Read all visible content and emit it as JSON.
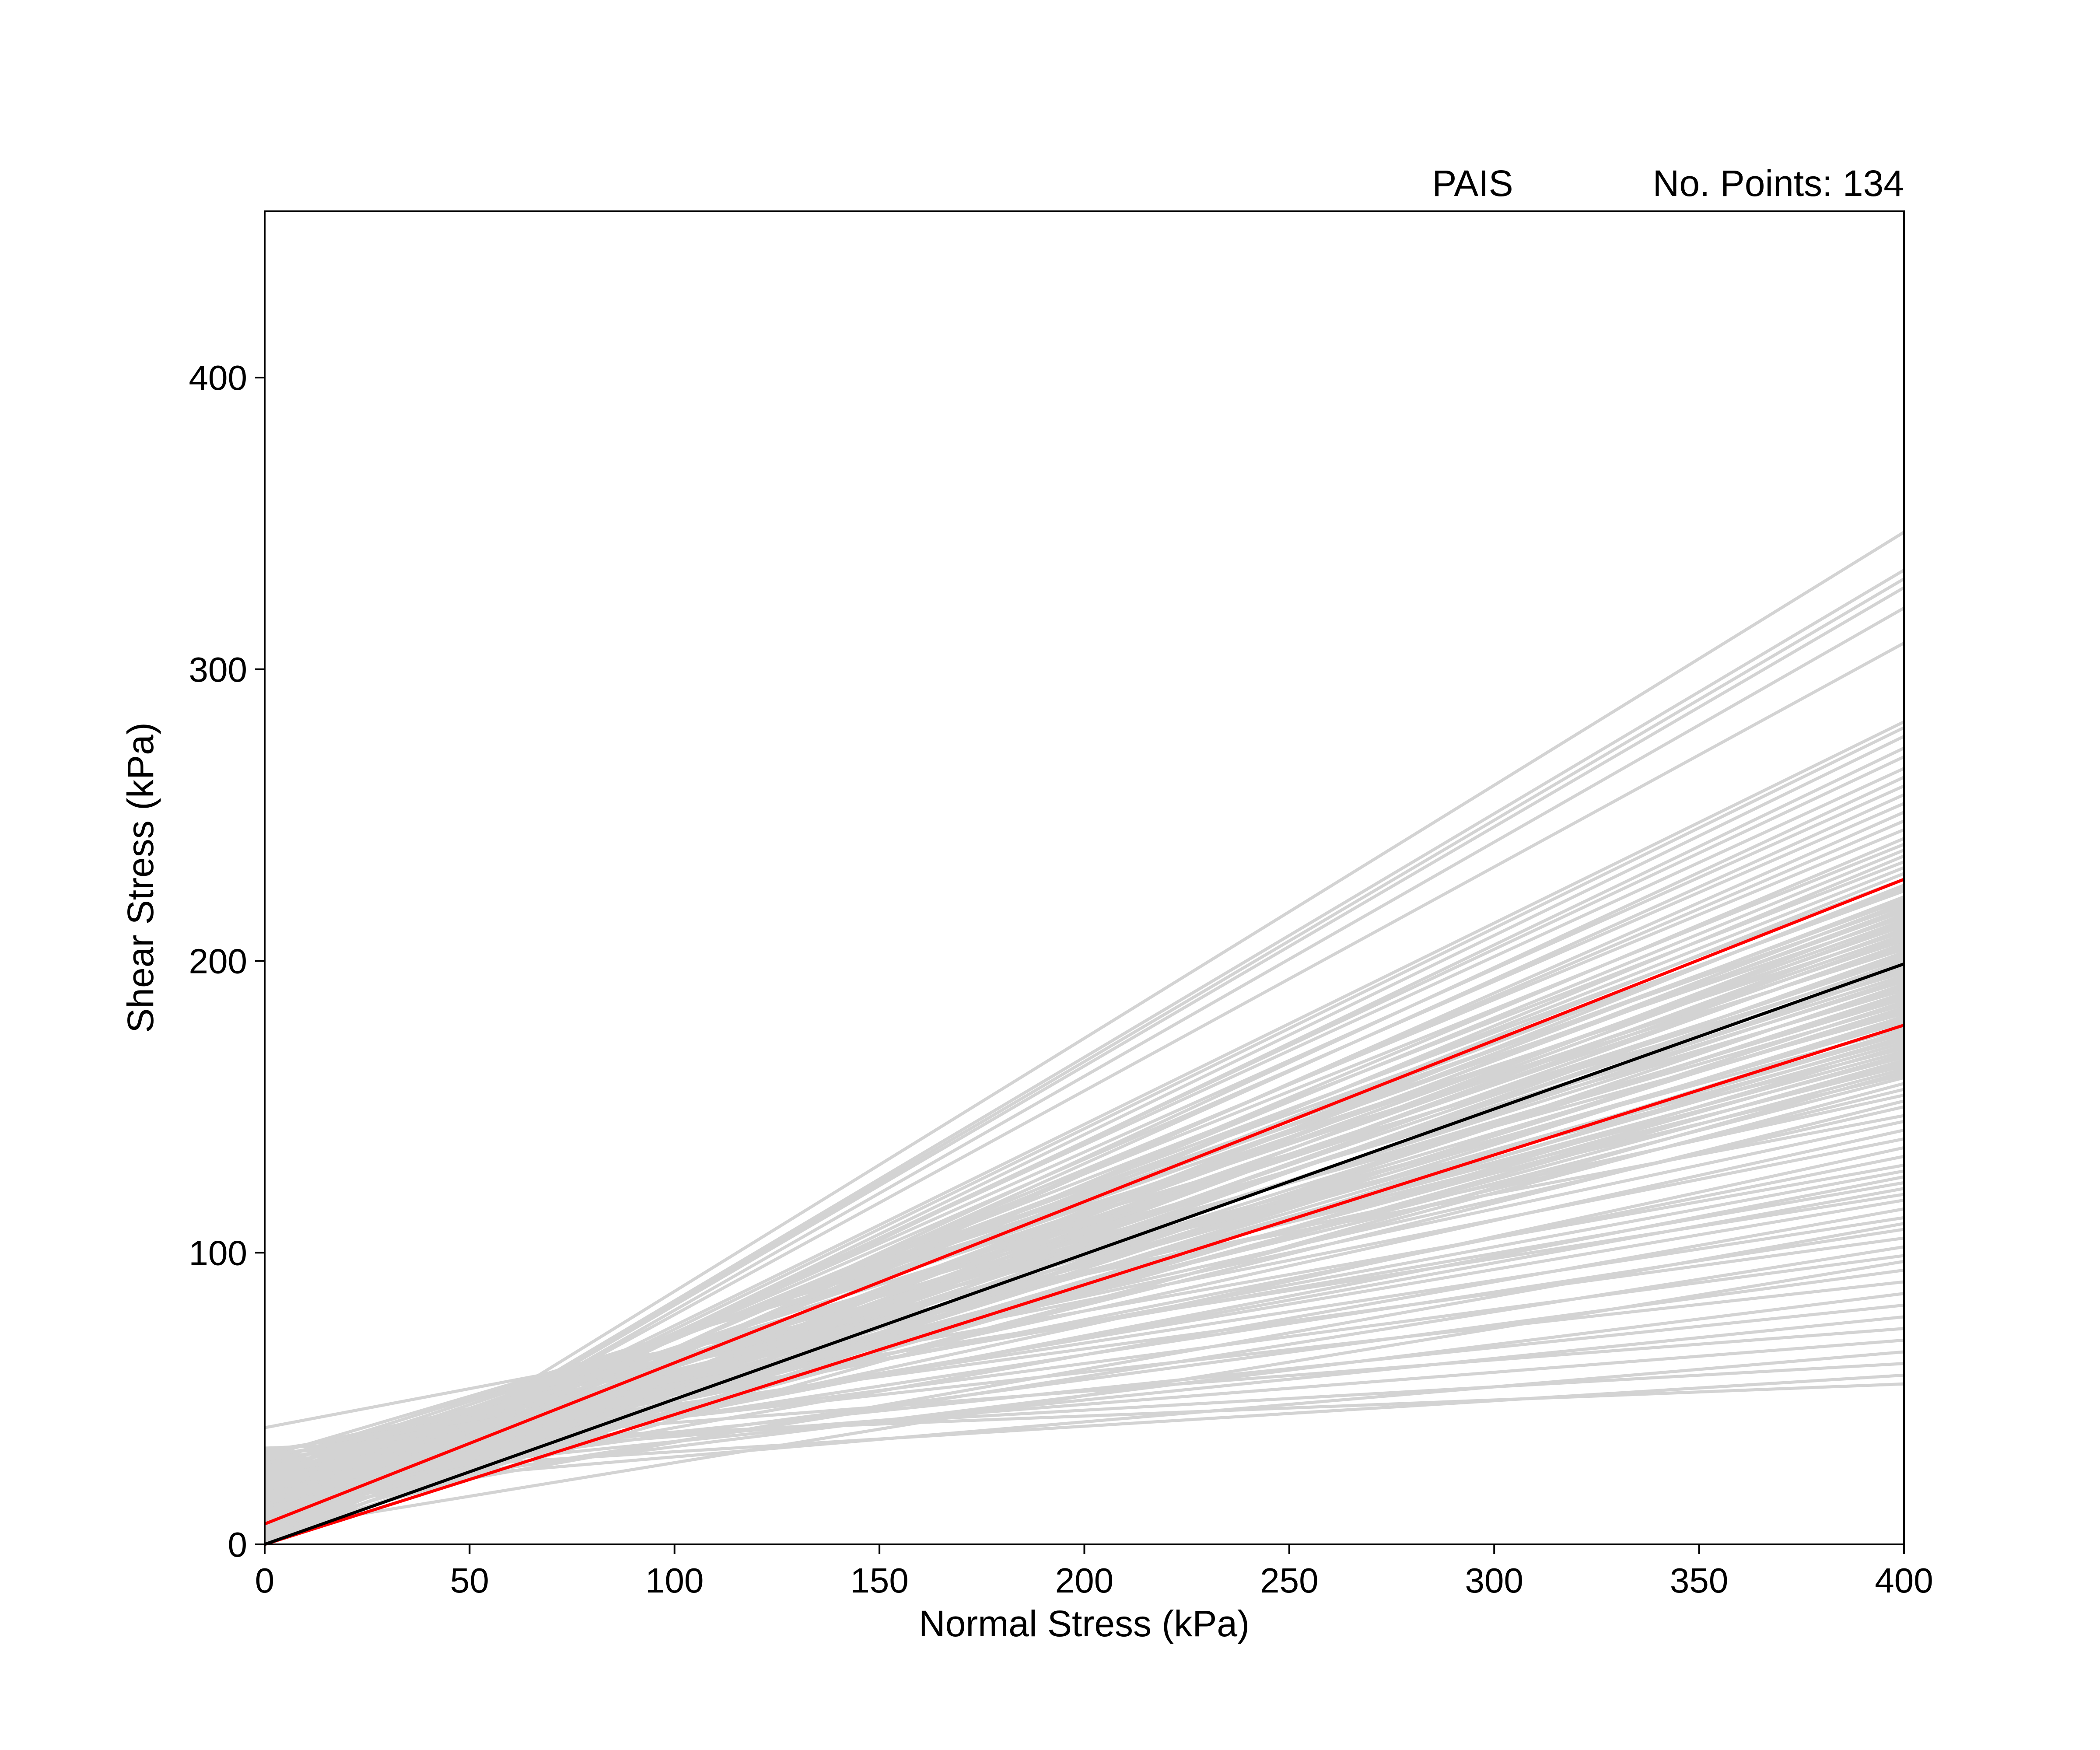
{
  "header": {
    "label_left": "PAIS",
    "label_right": "No. Points: 134"
  },
  "chart_data": {
    "type": "line",
    "title": "",
    "xlabel": "Normal Stress (kPa)",
    "ylabel": "Shear Stress (kPa)",
    "xlim": [
      0,
      400
    ],
    "ylim": [
      0,
      457
    ],
    "xticks": [
      0,
      50,
      100,
      150,
      200,
      250,
      300,
      350,
      400
    ],
    "yticks": [
      0,
      100,
      200,
      300,
      400
    ],
    "grid": false,
    "legend": "none",
    "sample_lines_color": "#d3d3d3",
    "sample_lines": [
      [
        [
          0,
          0
        ],
        [
          400,
          347
        ]
      ],
      [
        [
          0,
          0
        ],
        [
          400,
          334
        ]
      ],
      [
        [
          0,
          0
        ],
        [
          400,
          331
        ]
      ],
      [
        [
          0,
          0
        ],
        [
          400,
          328
        ]
      ],
      [
        [
          0,
          0
        ],
        [
          400,
          321
        ]
      ],
      [
        [
          0,
          2
        ],
        [
          400,
          309
        ]
      ],
      [
        [
          0,
          6
        ],
        [
          400,
          282
        ]
      ],
      [
        [
          0,
          5
        ],
        [
          400,
          280
        ]
      ],
      [
        [
          0,
          4
        ],
        [
          400,
          277
        ]
      ],
      [
        [
          0,
          3
        ],
        [
          400,
          273
        ]
      ],
      [
        [
          0,
          6
        ],
        [
          400,
          270
        ]
      ],
      [
        [
          0,
          8
        ],
        [
          400,
          266
        ]
      ],
      [
        [
          0,
          2
        ],
        [
          400,
          263
        ]
      ],
      [
        [
          0,
          9
        ],
        [
          400,
          260
        ]
      ],
      [
        [
          0,
          4
        ],
        [
          400,
          257
        ]
      ],
      [
        [
          0,
          10
        ],
        [
          400,
          254
        ]
      ],
      [
        [
          0,
          3
        ],
        [
          400,
          251
        ]
      ],
      [
        [
          0,
          7
        ],
        [
          400,
          248
        ]
      ],
      [
        [
          0,
          12
        ],
        [
          400,
          245
        ]
      ],
      [
        [
          0,
          5
        ],
        [
          400,
          242
        ]
      ],
      [
        [
          0,
          14
        ],
        [
          400,
          240
        ]
      ],
      [
        [
          0,
          8
        ],
        [
          400,
          238
        ]
      ],
      [
        [
          0,
          3
        ],
        [
          400,
          236
        ]
      ],
      [
        [
          0,
          16
        ],
        [
          400,
          234
        ]
      ],
      [
        [
          0,
          10
        ],
        [
          400,
          232
        ]
      ],
      [
        [
          0,
          6
        ],
        [
          400,
          230
        ]
      ],
      [
        [
          0,
          18
        ],
        [
          400,
          228
        ]
      ],
      [
        [
          0,
          2
        ],
        [
          400,
          226
        ]
      ],
      [
        [
          0,
          12
        ],
        [
          400,
          225
        ]
      ],
      [
        [
          0,
          20
        ],
        [
          400,
          224
        ]
      ],
      [
        [
          0,
          7
        ],
        [
          400,
          222
        ]
      ],
      [
        [
          0,
          15
        ],
        [
          400,
          221
        ]
      ],
      [
        [
          0,
          4
        ],
        [
          400,
          220
        ]
      ],
      [
        [
          0,
          22
        ],
        [
          400,
          219
        ]
      ],
      [
        [
          0,
          9
        ],
        [
          400,
          218
        ]
      ],
      [
        [
          0,
          17
        ],
        [
          400,
          217
        ]
      ],
      [
        [
          0,
          1
        ],
        [
          400,
          216
        ]
      ],
      [
        [
          0,
          24
        ],
        [
          400,
          215
        ]
      ],
      [
        [
          0,
          11
        ],
        [
          400,
          214
        ]
      ],
      [
        [
          0,
          6
        ],
        [
          400,
          213
        ]
      ],
      [
        [
          0,
          19
        ],
        [
          400,
          212
        ]
      ],
      [
        [
          0,
          3
        ],
        [
          400,
          211
        ]
      ],
      [
        [
          0,
          26
        ],
        [
          400,
          210
        ]
      ],
      [
        [
          0,
          13
        ],
        [
          400,
          209
        ]
      ],
      [
        [
          0,
          8
        ],
        [
          400,
          208
        ]
      ],
      [
        [
          0,
          21
        ],
        [
          400,
          207
        ]
      ],
      [
        [
          0,
          5
        ],
        [
          400,
          206
        ]
      ],
      [
        [
          0,
          15
        ],
        [
          400,
          205
        ]
      ],
      [
        [
          0,
          28
        ],
        [
          400,
          204
        ]
      ],
      [
        [
          0,
          2
        ],
        [
          400,
          203
        ]
      ],
      [
        [
          0,
          10
        ],
        [
          400,
          202
        ]
      ],
      [
        [
          0,
          18
        ],
        [
          400,
          201
        ]
      ],
      [
        [
          0,
          7
        ],
        [
          400,
          200
        ]
      ],
      [
        [
          0,
          23
        ],
        [
          400,
          199
        ]
      ],
      [
        [
          0,
          12
        ],
        [
          400,
          198
        ]
      ],
      [
        [
          0,
          4
        ],
        [
          400,
          197
        ]
      ],
      [
        [
          0,
          30
        ],
        [
          400,
          196
        ]
      ],
      [
        [
          0,
          16
        ],
        [
          400,
          195
        ]
      ],
      [
        [
          0,
          9
        ],
        [
          400,
          194
        ]
      ],
      [
        [
          0,
          20
        ],
        [
          400,
          193
        ]
      ],
      [
        [
          0,
          1
        ],
        [
          400,
          192
        ]
      ],
      [
        [
          0,
          14
        ],
        [
          400,
          191
        ]
      ],
      [
        [
          0,
          25
        ],
        [
          400,
          190
        ]
      ],
      [
        [
          0,
          6
        ],
        [
          400,
          189
        ]
      ],
      [
        [
          0,
          11
        ],
        [
          400,
          188
        ]
      ],
      [
        [
          0,
          19
        ],
        [
          400,
          187
        ]
      ],
      [
        [
          0,
          3
        ],
        [
          400,
          186
        ]
      ],
      [
        [
          0,
          22
        ],
        [
          400,
          185
        ]
      ],
      [
        [
          0,
          8
        ],
        [
          400,
          184
        ]
      ],
      [
        [
          0,
          15
        ],
        [
          400,
          183
        ]
      ],
      [
        [
          0,
          27
        ],
        [
          400,
          182
        ]
      ],
      [
        [
          0,
          5
        ],
        [
          400,
          181
        ]
      ],
      [
        [
          0,
          12
        ],
        [
          400,
          180
        ]
      ],
      [
        [
          0,
          18
        ],
        [
          400,
          179
        ]
      ],
      [
        [
          0,
          2
        ],
        [
          400,
          178
        ]
      ],
      [
        [
          0,
          24
        ],
        [
          400,
          177
        ]
      ],
      [
        [
          0,
          10
        ],
        [
          400,
          176
        ]
      ],
      [
        [
          0,
          16
        ],
        [
          400,
          175
        ]
      ],
      [
        [
          0,
          7
        ],
        [
          400,
          174
        ]
      ],
      [
        [
          0,
          21
        ],
        [
          400,
          173
        ]
      ],
      [
        [
          0,
          13
        ],
        [
          400,
          172
        ]
      ],
      [
        [
          0,
          4
        ],
        [
          400,
          171
        ]
      ],
      [
        [
          0,
          29
        ],
        [
          400,
          170
        ]
      ],
      [
        [
          0,
          17
        ],
        [
          400,
          169
        ]
      ],
      [
        [
          0,
          9
        ],
        [
          400,
          168
        ]
      ],
      [
        [
          0,
          20
        ],
        [
          400,
          167
        ]
      ],
      [
        [
          0,
          6
        ],
        [
          400,
          166
        ]
      ],
      [
        [
          0,
          14
        ],
        [
          400,
          165
        ]
      ],
      [
        [
          0,
          23
        ],
        [
          400,
          164
        ]
      ],
      [
        [
          0,
          11
        ],
        [
          400,
          163
        ]
      ],
      [
        [
          0,
          3
        ],
        [
          400,
          162
        ]
      ],
      [
        [
          0,
          26
        ],
        [
          400,
          161
        ]
      ],
      [
        [
          0,
          15
        ],
        [
          400,
          160
        ]
      ],
      [
        [
          0,
          8
        ],
        [
          400,
          158
        ]
      ],
      [
        [
          0,
          19
        ],
        [
          400,
          156
        ]
      ],
      [
        [
          0,
          31
        ],
        [
          400,
          154
        ]
      ],
      [
        [
          0,
          12
        ],
        [
          400,
          152
        ]
      ],
      [
        [
          0,
          22
        ],
        [
          400,
          150
        ]
      ],
      [
        [
          0,
          40
        ],
        [
          400,
          147
        ]
      ],
      [
        [
          0,
          25
        ],
        [
          400,
          145
        ]
      ],
      [
        [
          0,
          18
        ],
        [
          400,
          142
        ]
      ],
      [
        [
          0,
          28
        ],
        [
          400,
          139
        ]
      ],
      [
        [
          0,
          14
        ],
        [
          400,
          136
        ]
      ],
      [
        [
          0,
          21
        ],
        [
          400,
          133
        ]
      ],
      [
        [
          0,
          30
        ],
        [
          400,
          130
        ]
      ],
      [
        [
          0,
          24
        ],
        [
          400,
          128
        ]
      ],
      [
        [
          0,
          17
        ],
        [
          400,
          126
        ]
      ],
      [
        [
          0,
          27
        ],
        [
          400,
          124
        ]
      ],
      [
        [
          0,
          20
        ],
        [
          400,
          122
        ]
      ],
      [
        [
          0,
          32
        ],
        [
          400,
          120
        ]
      ],
      [
        [
          0,
          23
        ],
        [
          400,
          118
        ]
      ],
      [
        [
          0,
          15
        ],
        [
          400,
          115
        ]
      ],
      [
        [
          0,
          26
        ],
        [
          400,
          112
        ]
      ],
      [
        [
          0,
          10
        ],
        [
          400,
          110
        ]
      ],
      [
        [
          0,
          22
        ],
        [
          400,
          108
        ]
      ],
      [
        [
          0,
          29
        ],
        [
          400,
          105
        ]
      ],
      [
        [
          0,
          13
        ],
        [
          400,
          102
        ]
      ],
      [
        [
          0,
          25
        ],
        [
          400,
          99
        ]
      ],
      [
        [
          0,
          5
        ],
        [
          400,
          97
        ]
      ],
      [
        [
          0,
          19
        ],
        [
          400,
          94
        ]
      ],
      [
        [
          0,
          28
        ],
        [
          400,
          90
        ]
      ],
      [
        [
          0,
          16
        ],
        [
          400,
          86
        ]
      ],
      [
        [
          0,
          24
        ],
        [
          400,
          82
        ]
      ],
      [
        [
          0,
          21
        ],
        [
          400,
          78
        ]
      ],
      [
        [
          0,
          31
        ],
        [
          400,
          74
        ]
      ],
      [
        [
          0,
          26
        ],
        [
          400,
          70
        ]
      ],
      [
        [
          0,
          18
        ],
        [
          400,
          66
        ]
      ],
      [
        [
          0,
          30
        ],
        [
          400,
          62
        ]
      ],
      [
        [
          0,
          23
        ],
        [
          400,
          58
        ]
      ],
      [
        [
          0,
          33
        ],
        [
          400,
          55
        ]
      ]
    ],
    "mean_line": {
      "color": "#000000",
      "points": [
        [
          0,
          0
        ],
        [
          400,
          199
        ]
      ]
    },
    "bound_lines": {
      "color": "#ff0000",
      "lines": [
        [
          [
            0,
            7
          ],
          [
            400,
            228
          ]
        ],
        [
          [
            0,
            0
          ],
          [
            400,
            178
          ]
        ]
      ]
    }
  }
}
